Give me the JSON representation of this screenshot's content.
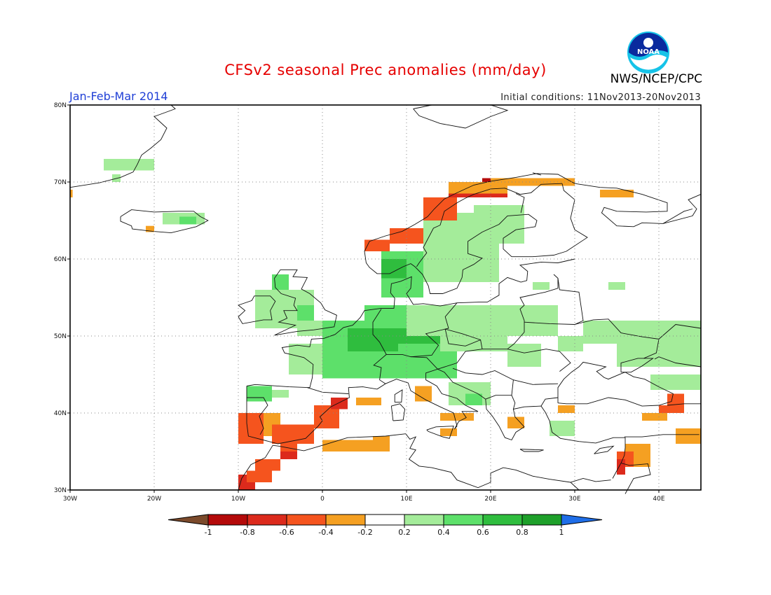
{
  "header": {
    "title": "CFSv2 seasonal Prec anomalies (mm/day)",
    "season": "Jan-Feb-Mar 2014",
    "initial_conditions": "Initial conditions: 11Nov2013-20Nov2013",
    "agency": "NWS/NCEP/CPC",
    "logo_text": "NOAA"
  },
  "map": {
    "region": "Europe",
    "lon_range": [
      -30,
      45
    ],
    "lat_range": [
      30,
      80
    ],
    "lon_ticks": [
      {
        "lon": -30,
        "label": "30W"
      },
      {
        "lon": -20,
        "label": "20W"
      },
      {
        "lon": -10,
        "label": "10W"
      },
      {
        "lon": 0,
        "label": "0"
      },
      {
        "lon": 10,
        "label": "10E"
      },
      {
        "lon": 20,
        "label": "20E"
      },
      {
        "lon": 30,
        "label": "30E"
      },
      {
        "lon": 40,
        "label": "40E"
      }
    ],
    "lat_ticks": [
      {
        "lat": 80,
        "label": "80N"
      },
      {
        "lat": 70,
        "label": "70N"
      },
      {
        "lat": 60,
        "label": "60N"
      },
      {
        "lat": 50,
        "label": "50N"
      },
      {
        "lat": 40,
        "label": "40N"
      },
      {
        "lat": 30,
        "label": "30N"
      }
    ],
    "grid": "dotted"
  },
  "colorbar": {
    "labels": [
      "-1",
      "-0.8",
      "-0.6",
      "-0.4",
      "-0.2",
      "0.2",
      "0.4",
      "0.6",
      "0.8",
      "1"
    ],
    "colors": {
      "below_min": "#7b4a2b",
      "b_m1_m08": "#b40a0a",
      "b_m08_m06": "#dc2a1c",
      "b_m06_m04": "#f5541e",
      "b_m04_m02": "#f5a022",
      "b_m02_02": "#ffffff",
      "b_02_04": "#a4ec9a",
      "b_04_06": "#5de06a",
      "b_06_08": "#2fbd3e",
      "b_08_1": "#1ea02a",
      "above_max": "#1f6ee8"
    }
  },
  "anomaly_patches": [
    {
      "level": "b_02_04",
      "lon": [
        -26,
        -20
      ],
      "lat": [
        71.5,
        73
      ]
    },
    {
      "level": "b_02_04",
      "lon": [
        -25,
        -24
      ],
      "lat": [
        70,
        71
      ]
    },
    {
      "level": "b_02_04",
      "lon": [
        -19,
        -14
      ],
      "lat": [
        64.5,
        66
      ]
    },
    {
      "level": "b_04_06",
      "lon": [
        -17,
        -15
      ],
      "lat": [
        64.5,
        65.5
      ]
    },
    {
      "level": "b_m04_m02",
      "lon": [
        -21,
        -20
      ],
      "lat": [
        63.5,
        64.3
      ]
    },
    {
      "level": "b_m04_m02",
      "lon": [
        -30,
        -29.7
      ],
      "lat": [
        68,
        69
      ]
    },
    {
      "level": "b_04_06",
      "lon": [
        -6,
        -4
      ],
      "lat": [
        56,
        58
      ]
    },
    {
      "level": "b_02_04",
      "lon": [
        -8,
        -1
      ],
      "lat": [
        51,
        56
      ]
    },
    {
      "level": "b_02_04",
      "lon": [
        -3,
        0
      ],
      "lat": [
        50,
        52
      ]
    },
    {
      "level": "b_04_06",
      "lon": [
        -3,
        -1
      ],
      "lat": [
        52,
        54
      ]
    },
    {
      "level": "b_02_04",
      "lon": [
        -4,
        3
      ],
      "lat": [
        45,
        49
      ]
    },
    {
      "level": "b_04_06",
      "lon": [
        0,
        16
      ],
      "lat": [
        44.5,
        52
      ]
    },
    {
      "level": "b_04_06",
      "lon": [
        5,
        10
      ],
      "lat": [
        52,
        54
      ]
    },
    {
      "level": "b_06_08",
      "lon": [
        3,
        9
      ],
      "lat": [
        48,
        51
      ]
    },
    {
      "level": "b_06_08",
      "lon": [
        9,
        14
      ],
      "lat": [
        49,
        51
      ]
    },
    {
      "level": "b_02_04",
      "lon": [
        10,
        28
      ],
      "lat": [
        50,
        54
      ]
    },
    {
      "level": "b_02_04",
      "lon": [
        14,
        22
      ],
      "lat": [
        48,
        50
      ]
    },
    {
      "level": "b_02_04",
      "lon": [
        22,
        26
      ],
      "lat": [
        46,
        49
      ]
    },
    {
      "level": "b_02_04",
      "lon": [
        15,
        20
      ],
      "lat": [
        41,
        44
      ]
    },
    {
      "level": "b_04_06",
      "lon": [
        17,
        19
      ],
      "lat": [
        41,
        42.5
      ]
    },
    {
      "level": "b_02_04",
      "lon": [
        28,
        31
      ],
      "lat": [
        48,
        50
      ]
    },
    {
      "level": "b_02_04",
      "lon": [
        31,
        45
      ],
      "lat": [
        49,
        52
      ]
    },
    {
      "level": "b_02_04",
      "lon": [
        35,
        45
      ],
      "lat": [
        46,
        49
      ]
    },
    {
      "level": "b_02_04",
      "lon": [
        39,
        45
      ],
      "lat": [
        43,
        45
      ]
    },
    {
      "level": "b_02_04",
      "lon": [
        27,
        30
      ],
      "lat": [
        37,
        39
      ]
    },
    {
      "level": "b_04_06",
      "lon": [
        -9,
        -6
      ],
      "lat": [
        41.5,
        43.5
      ]
    },
    {
      "level": "b_02_04",
      "lon": [
        -6,
        -4
      ],
      "lat": [
        42,
        43
      ]
    },
    {
      "level": "b_04_06",
      "lon": [
        7,
        12
      ],
      "lat": [
        55,
        61
      ]
    },
    {
      "level": "b_06_08",
      "lon": [
        7,
        10
      ],
      "lat": [
        57.5,
        60
      ]
    },
    {
      "level": "b_02_04",
      "lon": [
        12,
        21
      ],
      "lat": [
        57,
        66
      ]
    },
    {
      "level": "b_02_04",
      "lon": [
        18,
        24
      ],
      "lat": [
        62,
        67
      ]
    },
    {
      "level": "b_02_04",
      "lon": [
        25,
        27
      ],
      "lat": [
        56,
        57
      ]
    },
    {
      "level": "b_02_04",
      "lon": [
        34,
        36
      ],
      "lat": [
        56,
        57
      ]
    },
    {
      "level": "b_m04_m02",
      "lon": [
        -8,
        -5
      ],
      "lat": [
        37,
        40
      ]
    },
    {
      "level": "b_m06_m04",
      "lon": [
        -6,
        -1
      ],
      "lat": [
        36,
        38.5
      ]
    },
    {
      "level": "b_m06_m04",
      "lon": [
        -10,
        -7
      ],
      "lat": [
        36,
        40
      ]
    },
    {
      "level": "b_m06_m04",
      "lon": [
        -1,
        2
      ],
      "lat": [
        38,
        41
      ]
    },
    {
      "level": "b_m08_m06",
      "lon": [
        1,
        3
      ],
      "lat": [
        40.5,
        42
      ]
    },
    {
      "level": "b_m06_m04",
      "lon": [
        -5,
        -3
      ],
      "lat": [
        35,
        36.5
      ]
    },
    {
      "level": "b_m08_m06",
      "lon": [
        -5,
        -3
      ],
      "lat": [
        34,
        35
      ]
    },
    {
      "level": "b_m06_m04",
      "lon": [
        -8,
        -5
      ],
      "lat": [
        32.5,
        34
      ]
    },
    {
      "level": "b_m08_m06",
      "lon": [
        -10,
        -8
      ],
      "lat": [
        30,
        32
      ]
    },
    {
      "level": "b_m06_m04",
      "lon": [
        -9,
        -6
      ],
      "lat": [
        31,
        32.5
      ]
    },
    {
      "level": "b_m04_m02",
      "lon": [
        0,
        8
      ],
      "lat": [
        35,
        36.5
      ]
    },
    {
      "level": "b_m04_m02",
      "lon": [
        6,
        8
      ],
      "lat": [
        36,
        37
      ]
    },
    {
      "level": "b_m04_m02",
      "lon": [
        4,
        7
      ],
      "lat": [
        41,
        42
      ]
    },
    {
      "level": "b_m04_m02",
      "lon": [
        11,
        13
      ],
      "lat": [
        41.5,
        43.5
      ]
    },
    {
      "level": "b_m04_m02",
      "lon": [
        14,
        18
      ],
      "lat": [
        39,
        40
      ]
    },
    {
      "level": "b_m04_m02",
      "lon": [
        22,
        24
      ],
      "lat": [
        38,
        39.5
      ]
    },
    {
      "level": "b_m04_m02",
      "lon": [
        14,
        16
      ],
      "lat": [
        37,
        38
      ]
    },
    {
      "level": "b_m04_m02",
      "lon": [
        36,
        39
      ],
      "lat": [
        33,
        36
      ]
    },
    {
      "level": "b_m06_m04",
      "lon": [
        35,
        37
      ],
      "lat": [
        33,
        35
      ]
    },
    {
      "level": "b_m08_m06",
      "lon": [
        35,
        36
      ],
      "lat": [
        32,
        34
      ]
    },
    {
      "level": "b_m04_m02",
      "lon": [
        38,
        41
      ],
      "lat": [
        39,
        40
      ]
    },
    {
      "level": "b_m06_m04",
      "lon": [
        40,
        43
      ],
      "lat": [
        40,
        41
      ]
    },
    {
      "level": "b_m06_m04",
      "lon": [
        41,
        43
      ],
      "lat": [
        40.5,
        42.5
      ]
    },
    {
      "level": "b_m04_m02",
      "lon": [
        42,
        45
      ],
      "lat": [
        36,
        38
      ]
    },
    {
      "level": "b_m04_m02",
      "lon": [
        28,
        30
      ],
      "lat": [
        40,
        41
      ]
    },
    {
      "level": "b_m06_m04",
      "lon": [
        5,
        8
      ],
      "lat": [
        61,
        62.5
      ]
    },
    {
      "level": "b_m06_m04",
      "lon": [
        8,
        12
      ],
      "lat": [
        62,
        64
      ]
    },
    {
      "level": "b_m06_m04",
      "lon": [
        12,
        16
      ],
      "lat": [
        65,
        68
      ]
    },
    {
      "level": "b_m08_m06",
      "lon": [
        15,
        22
      ],
      "lat": [
        68,
        70
      ]
    },
    {
      "level": "b_m1_m08",
      "lon": [
        19,
        22
      ],
      "lat": [
        69,
        70.5
      ]
    },
    {
      "level": "b_m04_m02",
      "lon": [
        20,
        30
      ],
      "lat": [
        69.5,
        70.5
      ]
    },
    {
      "level": "b_m04_m02",
      "lon": [
        33,
        37
      ],
      "lat": [
        68,
        69
      ]
    },
    {
      "level": "b_m04_m02",
      "lon": [
        15,
        22
      ],
      "lat": [
        68.5,
        70
      ]
    }
  ]
}
